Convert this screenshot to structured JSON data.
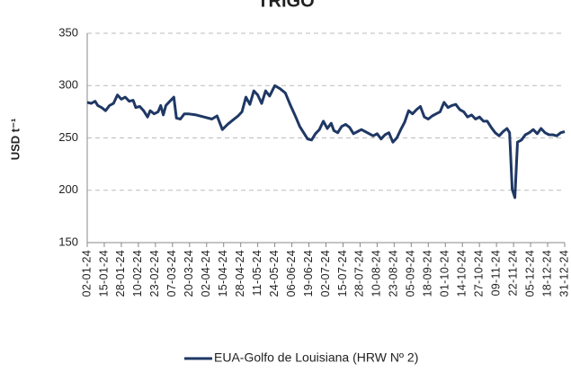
{
  "chart_data": {
    "type": "line",
    "title": "TRIGO",
    "y_label": "USD t⁻¹",
    "x": [
      "02-01-24",
      "05-01-24",
      "08-01-24",
      "10-01-24",
      "13-01-24",
      "16-01-24",
      "19-01-24",
      "22-01-24",
      "25-01-24",
      "28-01-24",
      "31-01-24",
      "03-02-24",
      "06-02-24",
      "08-02-24",
      "11-02-24",
      "14-02-24",
      "17-02-24",
      "19-02-24",
      "22-02-24",
      "25-02-24",
      "27-02-24",
      "29-02-24",
      "02-03-24",
      "05-03-24",
      "08-03-24",
      "10-03-24",
      "13-03-24",
      "16-03-24",
      "19-03-24",
      "25-03-24",
      "31-03-24",
      "06-04-24",
      "10-04-24",
      "14-04-24",
      "18-04-24",
      "22-04-24",
      "26-04-24",
      "29-04-24",
      "02-05-24",
      "05-05-24",
      "08-05-24",
      "11-05-24",
      "14-05-24",
      "17-05-24",
      "20-05-24",
      "24-05-24",
      "28-05-24",
      "01-06-24",
      "05-06-24",
      "09-06-24",
      "12-06-24",
      "15-06-24",
      "18-06-24",
      "21-06-24",
      "24-06-24",
      "27-06-24",
      "30-06-24",
      "03-07-24",
      "06-07-24",
      "08-07-24",
      "11-07-24",
      "14-07-24",
      "17-07-24",
      "20-07-24",
      "23-07-24",
      "26-07-24",
      "29-07-24",
      "01-08-24",
      "04-08-24",
      "07-08-24",
      "10-08-24",
      "13-08-24",
      "16-08-24",
      "19-08-24",
      "22-08-24",
      "25-08-24",
      "28-08-24",
      "31-08-24",
      "03-09-24",
      "06-09-24",
      "09-09-24",
      "12-09-24",
      "15-09-24",
      "18-09-24",
      "21-09-24",
      "24-09-24",
      "27-09-24",
      "30-09-24",
      "03-10-24",
      "06-10-24",
      "09-10-24",
      "12-10-24",
      "15-10-24",
      "18-10-24",
      "21-10-24",
      "24-10-24",
      "27-10-24",
      "30-10-24",
      "02-11-24",
      "05-11-24",
      "08-11-24",
      "11-11-24",
      "14-11-24",
      "17-11-24",
      "19-11-24",
      "21-11-24",
      "23-11-24",
      "25-11-24",
      "28-11-24",
      "01-12-24",
      "04-12-24",
      "07-12-24",
      "10-12-24",
      "13-12-24",
      "16-12-24",
      "19-12-24",
      "22-12-24",
      "25-12-24",
      "28-12-24",
      "31-12-24"
    ],
    "series": [
      {
        "name": "EUA-Golfo de Louisiana (HRW Nº 2)",
        "color": "#1f3864",
        "values": [
          284,
          283,
          285,
          281,
          279,
          276,
          281,
          283,
          291,
          287,
          289,
          285,
          286,
          279,
          280,
          276,
          270,
          276,
          273,
          275,
          281,
          272,
          281,
          285,
          289,
          269,
          268,
          273,
          273,
          272,
          270,
          268,
          271,
          258,
          263,
          267,
          271,
          275,
          289,
          282,
          295,
          291,
          283,
          295,
          290,
          300,
          297,
          293,
          281,
          270,
          261,
          255,
          249,
          248,
          254,
          258,
          266,
          259,
          264,
          257,
          255,
          261,
          263,
          260,
          254,
          256,
          258,
          256,
          254,
          252,
          254,
          249,
          253,
          255,
          246,
          250,
          258,
          265,
          276,
          273,
          277,
          280,
          270,
          268,
          271,
          273,
          275,
          284,
          279,
          281,
          282,
          277,
          275,
          270,
          272,
          268,
          270,
          266,
          266,
          260,
          255,
          252,
          256,
          259,
          255,
          201,
          193,
          246,
          248,
          253,
          255,
          258,
          254,
          259,
          255,
          253,
          253,
          252,
          255,
          256
        ]
      }
    ],
    "xlim": [
      "02-01-24",
      "31-12-24"
    ],
    "xticks": [
      "02-01-24",
      "15-01-24",
      "28-01-24",
      "10-02-24",
      "23-02-24",
      "07-03-24",
      "20-03-24",
      "02-04-24",
      "15-04-24",
      "28-04-24",
      "11-05-24",
      "24-05-24",
      "06-06-24",
      "19-06-24",
      "02-07-24",
      "15-07-24",
      "28-07-24",
      "10-08-24",
      "23-08-24",
      "05-09-24",
      "18-09-24",
      "01-10-24",
      "14-10-24",
      "27-10-24",
      "09-11-24",
      "22-11-24",
      "05-12-24",
      "18-12-24",
      "31-12-24"
    ],
    "ylim": [
      150,
      350
    ],
    "yticks": [
      150,
      200,
      250,
      300,
      350
    ],
    "grid": true,
    "legend": "bottom"
  }
}
